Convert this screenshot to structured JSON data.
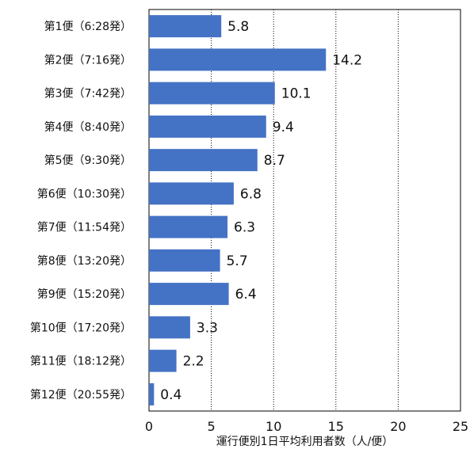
{
  "chart_data": {
    "type": "bar",
    "orientation": "horizontal",
    "categories": [
      "第1便（6:28発）",
      "第2便（7:16発）",
      "第3便（7:42発）",
      "第4便（8:40発）",
      "第5便（9:30発）",
      "第6便（10:30発）",
      "第7便（11:54発）",
      "第8便（13:20発）",
      "第9便（15:20発）",
      "第10便（17:20発）",
      "第11便（18:12発）",
      "第12便（20:55発）"
    ],
    "values": [
      5.8,
      14.2,
      10.1,
      9.4,
      8.7,
      6.8,
      6.3,
      5.7,
      6.4,
      3.3,
      2.2,
      0.4
    ],
    "value_labels": [
      "5.8",
      "14.2",
      "10.1",
      "9.4",
      "8.7",
      "6.8",
      "6.3",
      "5.7",
      "6.4",
      "3.3",
      "2.2",
      "0.4"
    ],
    "xlabel": "運行便別1日平均利用者数（人/便）",
    "xlim": [
      0,
      25
    ],
    "xticks": [
      "0",
      "5",
      "10",
      "15",
      "20",
      "25"
    ],
    "grid": "vertical dotted at 5,10,15,20",
    "bar_color": "#4472c4"
  }
}
